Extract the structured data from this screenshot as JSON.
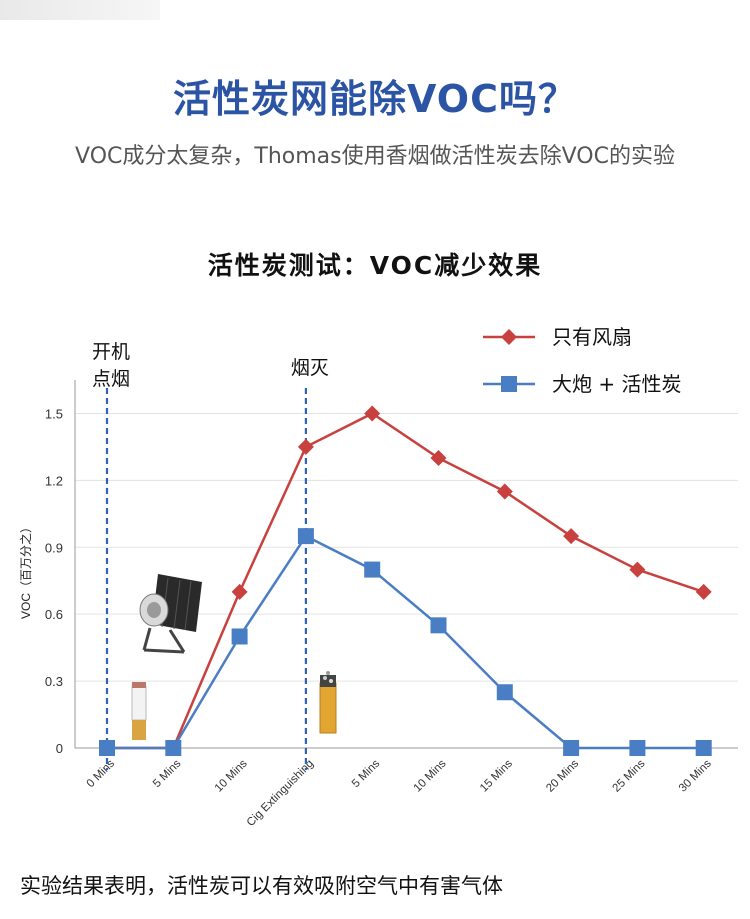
{
  "header": {
    "title": "活性炭网能除VOC吗？",
    "subtitle": "VOC成分太复杂，Thomas使用香烟做活性炭去除VOC的实验"
  },
  "footer": {
    "conclusion": "实验结果表明，活性炭可以有效吸附空气中有害气体"
  },
  "colors": {
    "title": "#2b55a4",
    "series_fan": "#c8413e",
    "series_carbon": "#4a7ec4",
    "vline": "#2f62b8"
  },
  "chart_data": {
    "type": "line",
    "title": "活性炭测试：VOC减少效果",
    "ylabel": "VOC（百万分之）",
    "xlabel": "",
    "categories": [
      "0 Mins",
      "5 Mins",
      "10 Mins",
      "Cig Extinguishing",
      "5 Mins",
      "10 Mins",
      "15 Mins",
      "20 Mins",
      "25 Mins",
      "30 Mins"
    ],
    "yticks": [
      "0",
      "0.3",
      "0.6",
      "0.9",
      "1.2",
      "1.5"
    ],
    "ylim": [
      0,
      1.65
    ],
    "grid": true,
    "legend_position": "top-right",
    "series": [
      {
        "name": "只有风扇",
        "marker": "diamond",
        "color": "#c8413e",
        "values": [
          0,
          0,
          0.7,
          1.35,
          1.5,
          1.3,
          1.15,
          0.95,
          0.8,
          0.7
        ]
      },
      {
        "name": "大炮 + 活性炭",
        "marker": "square",
        "color": "#4a7ec4",
        "values": [
          0,
          0,
          0.5,
          0.95,
          0.8,
          0.55,
          0.25,
          0,
          0,
          0
        ]
      }
    ],
    "annotations": [
      {
        "category_index": 0,
        "lines": [
          "开机",
          "点烟"
        ]
      },
      {
        "category_index": 3,
        "lines": [
          "烟灭"
        ]
      }
    ]
  }
}
